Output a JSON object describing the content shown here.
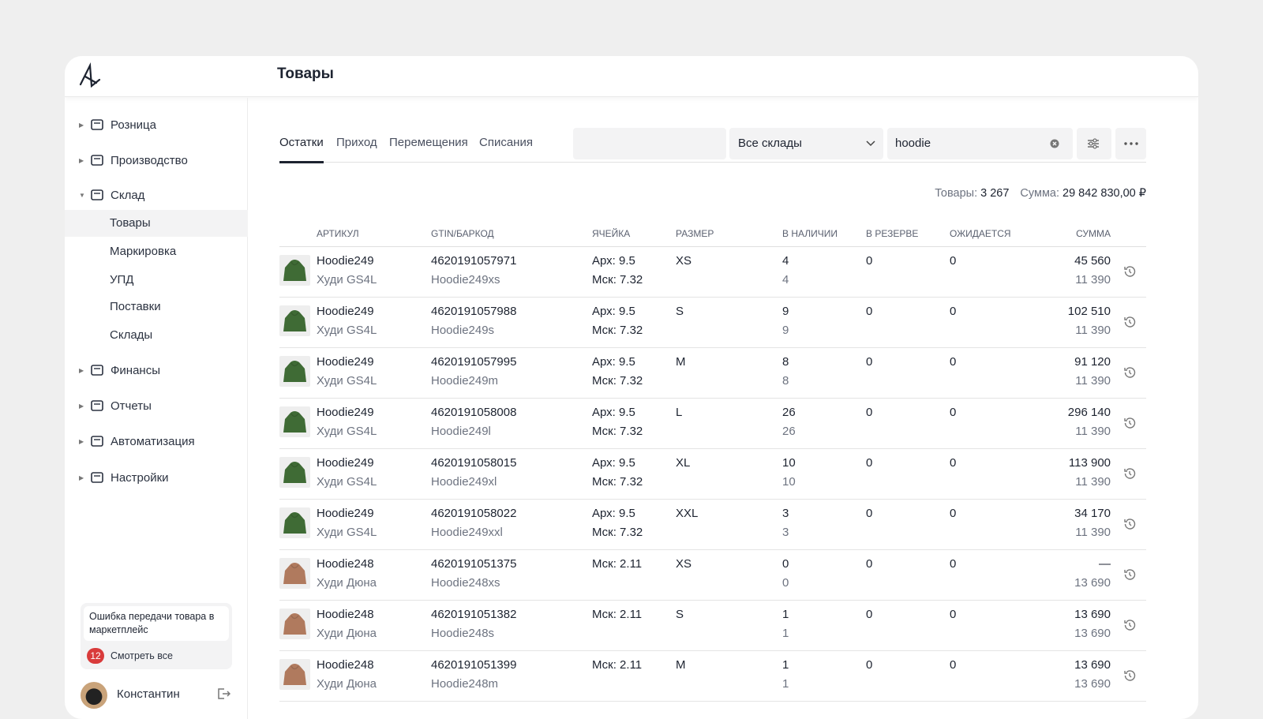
{
  "header": {
    "title": "Товары"
  },
  "sidebar": {
    "sections": [
      {
        "label": "Розница"
      },
      {
        "label": "Производство"
      },
      {
        "label": "Склад"
      }
    ],
    "subitems": [
      "Товары",
      "Маркировка",
      "УПД",
      "Поставки",
      "Склады"
    ],
    "sections_after": [
      {
        "label": "Финансы"
      },
      {
        "label": "Отчеты"
      },
      {
        "label": "Автоматизация"
      },
      {
        "label": "Настройки"
      }
    ],
    "notice": {
      "text": "Ошибка передачи товара в маркетплейс",
      "count": "12",
      "link": "Смотреть все"
    },
    "user": "Константин"
  },
  "tabs": [
    "Остатки",
    "Приход",
    "Перемещения",
    "Списания"
  ],
  "filters": {
    "warehouse": "Все склады",
    "search": "hoodie"
  },
  "summary": {
    "items_label": "Товары:",
    "items_value": "3 267",
    "sum_label": "Сумма:",
    "sum_value": "29 842 830,00 ₽"
  },
  "table": {
    "columns": [
      "АРТИКУЛ",
      "GTIN/БАРКОД",
      "ЯЧЕЙКА",
      "РАЗМЕР",
      "В НАЛИЧИИ",
      "В РЕЗЕРВЕ",
      "ОЖИДАЕТСЯ",
      "СУММА"
    ],
    "rows": [
      {
        "thumb_color": "#3f6b35",
        "article": "Hoodie249",
        "name": "Худи GS4L",
        "gtin": "4620191057971",
        "sku": "Hoodie249xs",
        "cell": [
          "Арх: 9.5",
          "Мск: 7.32"
        ],
        "size": "XS",
        "stock": "4",
        "stock_sub": "4",
        "reserve": "0",
        "expected": "0",
        "sum": "45 560",
        "price": "11 390"
      },
      {
        "thumb_color": "#3f6b35",
        "article": "Hoodie249",
        "name": "Худи GS4L",
        "gtin": "4620191057988",
        "sku": "Hoodie249s",
        "cell": [
          "Арх: 9.5",
          "Мск: 7.32"
        ],
        "size": "S",
        "stock": "9",
        "stock_sub": "9",
        "reserve": "0",
        "expected": "0",
        "sum": "102 510",
        "price": "11 390"
      },
      {
        "thumb_color": "#3f6b35",
        "article": "Hoodie249",
        "name": "Худи GS4L",
        "gtin": "4620191057995",
        "sku": "Hoodie249m",
        "cell": [
          "Арх: 9.5",
          "Мск: 7.32"
        ],
        "size": "M",
        "stock": "8",
        "stock_sub": "8",
        "reserve": "0",
        "expected": "0",
        "sum": "91 120",
        "price": "11 390"
      },
      {
        "thumb_color": "#3f6b35",
        "article": "Hoodie249",
        "name": "Худи GS4L",
        "gtin": "4620191058008",
        "sku": "Hoodie249l",
        "cell": [
          "Арх: 9.5",
          "Мск: 7.32"
        ],
        "size": "L",
        "stock": "26",
        "stock_sub": "26",
        "reserve": "0",
        "expected": "0",
        "sum": "296 140",
        "price": "11 390"
      },
      {
        "thumb_color": "#3f6b35",
        "article": "Hoodie249",
        "name": "Худи GS4L",
        "gtin": "4620191058015",
        "sku": "Hoodie249xl",
        "cell": [
          "Арх: 9.5",
          "Мск: 7.32"
        ],
        "size": "XL",
        "stock": "10",
        "stock_sub": "10",
        "reserve": "0",
        "expected": "0",
        "sum": "113 900",
        "price": "11 390"
      },
      {
        "thumb_color": "#3f6b35",
        "article": "Hoodie249",
        "name": "Худи GS4L",
        "gtin": "4620191058022",
        "sku": "Hoodie249xxl",
        "cell": [
          "Арх: 9.5",
          "Мск: 7.32"
        ],
        "size": "XXL",
        "stock": "3",
        "stock_sub": "3",
        "reserve": "0",
        "expected": "0",
        "sum": "34 170",
        "price": "11 390"
      },
      {
        "thumb_color": "#b07a5e",
        "article": "Hoodie248",
        "name": "Худи Дюна",
        "gtin": "4620191051375",
        "sku": "Hoodie248xs",
        "cell": [
          "Мск: 2.11"
        ],
        "size": "XS",
        "stock": "0",
        "stock_sub": "0",
        "reserve": "0",
        "expected": "0",
        "sum": "—",
        "price": "13 690"
      },
      {
        "thumb_color": "#b07a5e",
        "article": "Hoodie248",
        "name": "Худи Дюна",
        "gtin": "4620191051382",
        "sku": "Hoodie248s",
        "cell": [
          "Мск: 2.11"
        ],
        "size": "S",
        "stock": "1",
        "stock_sub": "1",
        "reserve": "0",
        "expected": "0",
        "sum": "13 690",
        "price": "13 690"
      },
      {
        "thumb_color": "#b07a5e",
        "article": "Hoodie248",
        "name": "Худи Дюна",
        "gtin": "4620191051399",
        "sku": "Hoodie248m",
        "cell": [
          "Мск: 2.11"
        ],
        "size": "M",
        "stock": "1",
        "stock_sub": "1",
        "reserve": "0",
        "expected": "0",
        "sum": "13 690",
        "price": "13 690"
      }
    ]
  }
}
